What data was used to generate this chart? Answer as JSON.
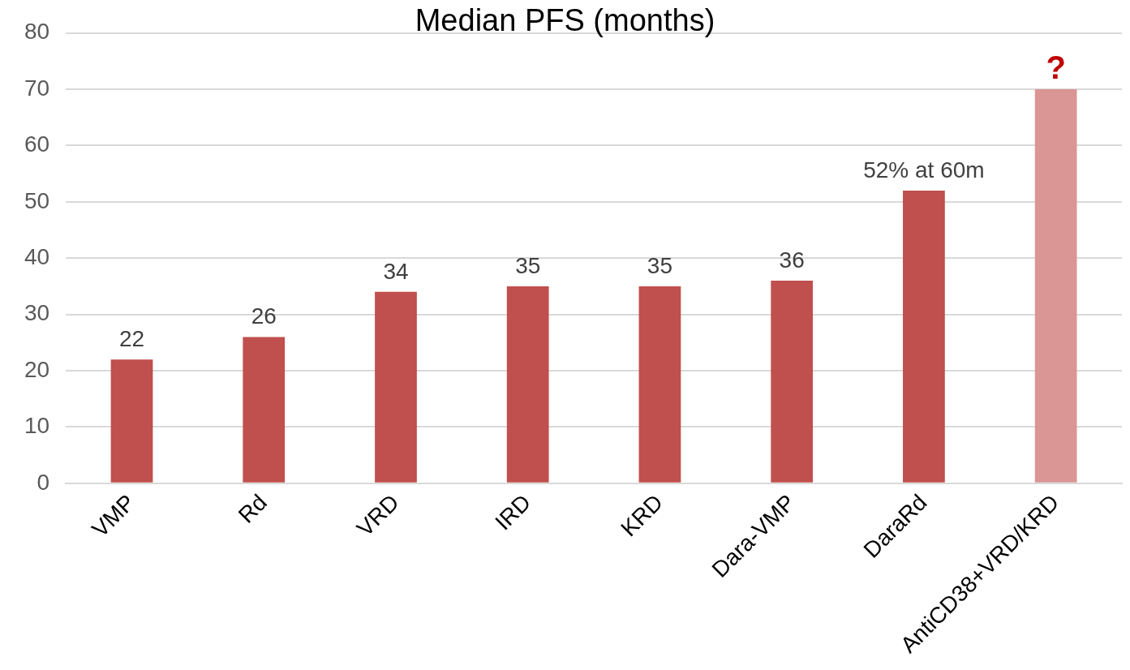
{
  "chart_data": {
    "type": "bar",
    "title": "Median PFS (months)",
    "categories": [
      "VMP",
      "Rd",
      "VRD",
      "IRD",
      "KRD",
      "Dara-VMP",
      "DaraRd",
      "AntiCD38+VRD/KRD"
    ],
    "values": [
      22,
      26,
      34,
      35,
      35,
      36,
      52,
      70
    ],
    "colors": [
      "#c0504d",
      "#c0504d",
      "#c0504d",
      "#c0504d",
      "#c0504d",
      "#c0504d",
      "#c0504d",
      "#d99694"
    ],
    "value_labels": [
      "22",
      "26",
      "34",
      "35",
      "35",
      "36",
      "52% at 60m",
      null
    ],
    "annotations": [
      {
        "text": "?",
        "x": "AntiCD38+VRD/KRD",
        "y": 70
      }
    ],
    "ylim": [
      0,
      80
    ],
    "yticks": [
      0,
      10,
      20,
      30,
      40,
      50,
      60,
      70,
      80
    ],
    "grid": "y",
    "legend": false
  }
}
